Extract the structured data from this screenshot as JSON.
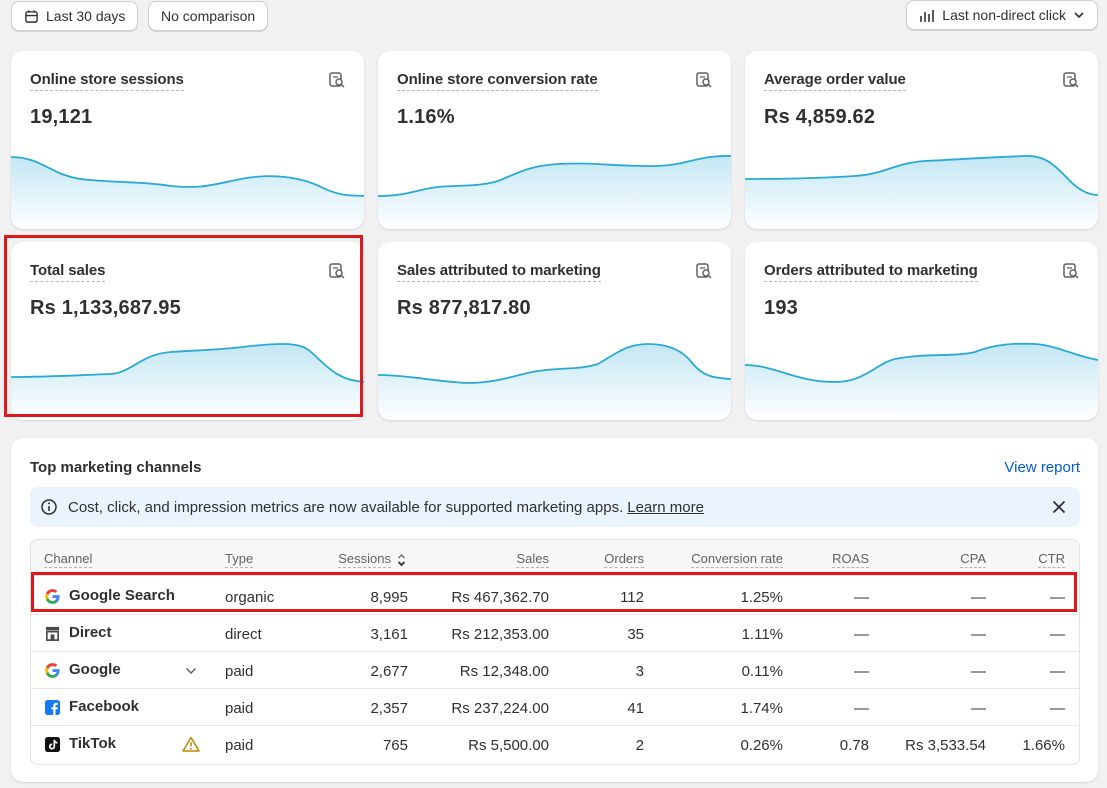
{
  "toolbar": {
    "date_range": "Last 30 days",
    "comparison": "No comparison",
    "attribution": "Last non-direct click"
  },
  "metrics": [
    {
      "title": "Online store sessions",
      "value": "19,121"
    },
    {
      "title": "Online store conversion rate",
      "value": "1.16%"
    },
    {
      "title": "Average order value",
      "value": "Rs 4,859.62"
    },
    {
      "title": "Total sales",
      "value": "Rs 1,133,687.95"
    },
    {
      "title": "Sales attributed to marketing",
      "value": "Rs 877,817.80"
    },
    {
      "title": "Orders attributed to marketing",
      "value": "193"
    }
  ],
  "channels_panel": {
    "title": "Top marketing channels",
    "view_report": "View report",
    "banner_message": "Cost, click, and impression metrics are now available for supported marketing apps.",
    "banner_link": "Learn more",
    "columns": {
      "channel": "Channel",
      "type": "Type",
      "sessions": "Sessions",
      "sales": "Sales",
      "orders": "Orders",
      "conversion": "Conversion rate",
      "roas": "ROAS",
      "cpa": "CPA",
      "ctr": "CTR"
    },
    "rows": [
      {
        "channel": "Google Search",
        "icon": "google-icon",
        "type": "organic",
        "sessions": "8,995",
        "sales": "Rs 467,362.70",
        "orders": "112",
        "conversion": "1.25%",
        "roas": "—",
        "cpa": "—",
        "ctr": "—"
      },
      {
        "channel": "Direct",
        "icon": "store-icon",
        "type": "direct",
        "sessions": "3,161",
        "sales": "Rs 212,353.00",
        "orders": "35",
        "conversion": "1.11%",
        "roas": "—",
        "cpa": "—",
        "ctr": "—"
      },
      {
        "channel": "Google",
        "icon": "google-icon",
        "type": "paid",
        "sessions": "2,677",
        "sales": "Rs 12,348.00",
        "orders": "3",
        "conversion": "0.11%",
        "roas": "—",
        "cpa": "—",
        "ctr": "—"
      },
      {
        "channel": "Facebook",
        "icon": "facebook-icon",
        "type": "paid",
        "sessions": "2,357",
        "sales": "Rs 237,224.00",
        "orders": "41",
        "conversion": "1.74%",
        "roas": "—",
        "cpa": "—",
        "ctr": "—"
      },
      {
        "channel": "TikTok",
        "icon": "tiktok-icon",
        "type": "paid",
        "sessions": "765",
        "sales": "Rs 5,500.00",
        "orders": "2",
        "conversion": "0.26%",
        "roas": "0.78",
        "cpa": "Rs 3,533.54",
        "ctr": "1.66%"
      }
    ]
  },
  "colors": {
    "accent_link": "#005bd3",
    "sparkline": "#29a9d6",
    "highlight": "#e0171c",
    "banner_bg": "#eaf4ff"
  }
}
